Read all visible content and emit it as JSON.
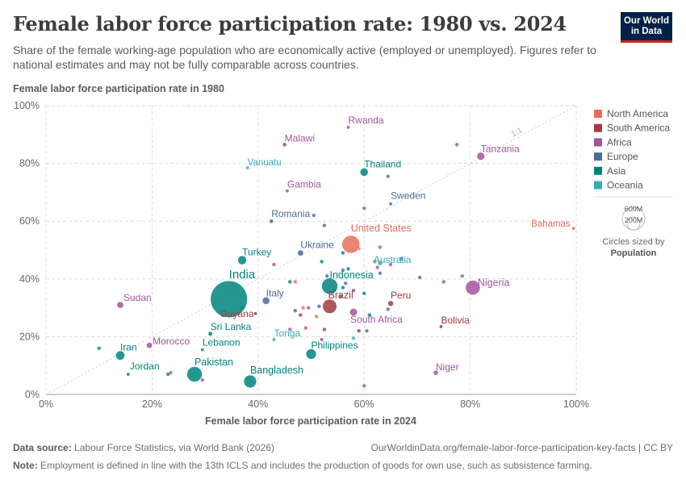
{
  "header": {
    "title": "Female labor force participation rate: 1980 vs. 2024",
    "subtitle": "Share of the female working-age population who are economically active (employed or unemployed). Figures refer to national estimates and may not be fully comparable across countries.",
    "logo_line1": "Our World",
    "logo_line2": "in Data"
  },
  "footer": {
    "source_label": "Data source:",
    "source_text": "Labour Force Statistics, via World Bank (2026)",
    "url": "OurWorldinData.org/female-labor-force-participation-key-facts | CC BY",
    "note_label": "Note:",
    "note_text": "Employment is defined in line with the 13th ICLS and includes the production of goods for own use, such as subsistence farming."
  },
  "colors": {
    "North America": "#e56e5a",
    "South America": "#a2393f",
    "Africa": "#a2559c",
    "Europe": "#4c6a9c",
    "Asia": "#00847e",
    "Oceania": "#38aaba"
  },
  "size_legend": {
    "big_label": "600M",
    "small_label": "200M",
    "caption1": "Circles sized by",
    "caption2": "Population"
  },
  "chart_data": {
    "type": "scatter",
    "title": "Female labor force participation rate: 1980 vs. 2024",
    "xlabel": "Female labor force participation rate in 2024",
    "ylabel": "Female labor force participation rate in 1980",
    "xlim": [
      0,
      100
    ],
    "ylim": [
      0,
      100
    ],
    "xticks": [
      "0%",
      "20%",
      "40%",
      "60%",
      "80%",
      "100%"
    ],
    "yticks": [
      "0%",
      "20%",
      "40%",
      "60%",
      "80%",
      "100%"
    ],
    "diagonal_label": "1:1",
    "grid": true,
    "legend_position": "right",
    "legend": [
      "North America",
      "South America",
      "Africa",
      "Europe",
      "Asia",
      "Oceania"
    ],
    "points": [
      {
        "label": "India",
        "region": "Asia",
        "x": 34.5,
        "y": 33,
        "pop": 1450
      },
      {
        "label": "United States",
        "region": "North America",
        "x": 57.5,
        "y": 52,
        "pop": 340
      },
      {
        "label": "Indonesia",
        "region": "Asia",
        "x": 53.5,
        "y": 37.5,
        "pop": 280
      },
      {
        "label": "Pakistan",
        "region": "Asia",
        "x": 28,
        "y": 7,
        "pop": 250
      },
      {
        "label": "Nigeria",
        "region": "Africa",
        "x": 80.5,
        "y": 37,
        "pop": 230
      },
      {
        "label": "Brazil",
        "region": "South America",
        "x": 53.5,
        "y": 30.5,
        "pop": 215
      },
      {
        "label": "Bangladesh",
        "region": "Asia",
        "x": 38.5,
        "y": 4.5,
        "pop": 175
      },
      {
        "label": "Ukraine",
        "region": "Europe",
        "x": 48,
        "y": 49,
        "pop": 40
      },
      {
        "label": "Thailand",
        "region": "Asia",
        "x": 60,
        "y": 77,
        "pop": 72
      },
      {
        "label": "Tanzania",
        "region": "Africa",
        "x": 82,
        "y": 82.5,
        "pop": 67
      },
      {
        "label": "Rwanda",
        "region": "Africa",
        "x": 57,
        "y": 92.5,
        "pop": 14
      },
      {
        "label": "Malawi",
        "region": "Africa",
        "x": 45,
        "y": 86.5,
        "pop": 21
      },
      {
        "label": "Vanuatu",
        "region": "Oceania",
        "x": 38,
        "y": 78.5,
        "pop": 0.3
      },
      {
        "label": "Gambia",
        "region": "Africa",
        "x": 45.5,
        "y": 70.5,
        "pop": 2.7
      },
      {
        "label": "Sweden",
        "region": "Europe",
        "x": 65,
        "y": 66,
        "pop": 10.5
      },
      {
        "label": "Romania",
        "region": "Europe",
        "x": 42.5,
        "y": 60,
        "pop": 19
      },
      {
        "label": "Bahamas",
        "region": "North America",
        "x": 99.5,
        "y": 57.5,
        "pop": 0.4
      },
      {
        "label": "Turkey",
        "region": "Asia",
        "x": 37,
        "y": 46.5,
        "pop": 85
      },
      {
        "label": "Australia",
        "region": "Oceania",
        "x": 63,
        "y": 45.5,
        "pop": 26.5
      },
      {
        "label": "Italy",
        "region": "Europe",
        "x": 41.5,
        "y": 32.5,
        "pop": 59
      },
      {
        "label": "Guyana",
        "region": "South America",
        "x": 39.5,
        "y": 28,
        "pop": 0.8
      },
      {
        "label": "Peru",
        "region": "South America",
        "x": 65,
        "y": 31.5,
        "pop": 34
      },
      {
        "label": "South Africa",
        "region": "Africa",
        "x": 58,
        "y": 28.5,
        "pop": 63
      },
      {
        "label": "Bolivia",
        "region": "South America",
        "x": 74.5,
        "y": 23.5,
        "pop": 12
      },
      {
        "label": "Sudan",
        "region": "Africa",
        "x": 14,
        "y": 31,
        "pop": 48
      },
      {
        "label": "Morocco",
        "region": "Africa",
        "x": 19.5,
        "y": 17,
        "pop": 37
      },
      {
        "label": "Iran",
        "region": "Asia",
        "x": 14,
        "y": 13.5,
        "pop": 90
      },
      {
        "label": "Jordan",
        "region": "Asia",
        "x": 15.5,
        "y": 7,
        "pop": 11
      },
      {
        "label": "Lebanon",
        "region": "Asia",
        "x": 29.5,
        "y": 15.5,
        "pop": 5.5
      },
      {
        "label": "Sri Lanka",
        "region": "Asia",
        "x": 31,
        "y": 21,
        "pop": 22
      },
      {
        "label": "Tonga",
        "region": "Oceania",
        "x": 43,
        "y": 19,
        "pop": 0.1
      },
      {
        "label": "Philippines",
        "region": "Asia",
        "x": 50,
        "y": 14,
        "pop": 115
      },
      {
        "label": "Niger",
        "region": "Africa",
        "x": 73.5,
        "y": 7.5,
        "pop": 27
      }
    ],
    "unlabeled_points": [
      {
        "region": "Asia",
        "x": 10,
        "y": 16
      },
      {
        "region": "Africa",
        "x": 23.5,
        "y": 7.5
      },
      {
        "region": "Asia",
        "x": 23,
        "y": 7
      },
      {
        "region": "Africa",
        "x": 29.5,
        "y": 5
      },
      {
        "region": "Oceania",
        "x": 37,
        "y": 30
      },
      {
        "region": "Asia",
        "x": 46,
        "y": 39
      },
      {
        "region": "North America",
        "x": 47,
        "y": 39
      },
      {
        "region": "Africa",
        "x": 43,
        "y": 45
      },
      {
        "region": "Europe",
        "x": 50.5,
        "y": 62
      },
      {
        "region": "Africa",
        "x": 46,
        "y": 22.5
      },
      {
        "region": "Europe",
        "x": 47,
        "y": 29
      },
      {
        "region": "South America",
        "x": 48,
        "y": 27.5
      },
      {
        "region": "North America",
        "x": 48.5,
        "y": 30
      },
      {
        "region": "Africa",
        "x": 49.5,
        "y": 30
      },
      {
        "region": "Africa",
        "x": 49,
        "y": 23
      },
      {
        "region": "North America",
        "x": 51,
        "y": 27
      },
      {
        "region": "South America",
        "x": 52.5,
        "y": 22.5
      },
      {
        "region": "Africa",
        "x": 52,
        "y": 19
      },
      {
        "region": "Europe",
        "x": 51.5,
        "y": 30.5
      },
      {
        "region": "Europe",
        "x": 52.5,
        "y": 58.5
      },
      {
        "region": "Asia",
        "x": 52,
        "y": 46
      },
      {
        "region": "Europe",
        "x": 53,
        "y": 41
      },
      {
        "region": "Europe",
        "x": 54.5,
        "y": 36
      },
      {
        "region": "Asia",
        "x": 55.5,
        "y": 34
      },
      {
        "region": "Europe",
        "x": 56,
        "y": 43
      },
      {
        "region": "Asia",
        "x": 56,
        "y": 49
      },
      {
        "region": "Europe",
        "x": 56.5,
        "y": 38.5
      },
      {
        "region": "Asia",
        "x": 57,
        "y": 43.5
      },
      {
        "region": "Asia",
        "x": 56,
        "y": 37
      },
      {
        "region": "Europe",
        "x": 58,
        "y": 36
      },
      {
        "region": "Oceania",
        "x": 58,
        "y": 19.5
      },
      {
        "region": "South America",
        "x": 59,
        "y": 22
      },
      {
        "region": "Europe",
        "x": 60.5,
        "y": 22
      },
      {
        "region": "Asia",
        "x": 60,
        "y": 35
      },
      {
        "region": "Asia",
        "x": 61,
        "y": 27.5
      },
      {
        "region": "North America",
        "x": 59,
        "y": 50.5
      },
      {
        "region": "North America",
        "x": 62,
        "y": 46
      },
      {
        "region": "Africa",
        "x": 62.5,
        "y": 44
      },
      {
        "region": "Europe",
        "x": 63,
        "y": 42
      },
      {
        "region": "Africa",
        "x": 63,
        "y": 51
      },
      {
        "region": "Africa",
        "x": 65,
        "y": 45
      },
      {
        "region": "Africa",
        "x": 64.5,
        "y": 75.5
      },
      {
        "region": "Europe",
        "x": 64.5,
        "y": 29.5
      },
      {
        "region": "Africa",
        "x": 60,
        "y": 64.5
      },
      {
        "region": "Africa",
        "x": 60,
        "y": 3
      },
      {
        "region": "Europe",
        "x": 70.5,
        "y": 40.5
      },
      {
        "region": "Africa",
        "x": 75,
        "y": 39
      },
      {
        "region": "Africa",
        "x": 78.5,
        "y": 41
      },
      {
        "region": "Africa",
        "x": 77.5,
        "y": 86.5
      },
      {
        "region": "Europe",
        "x": 67,
        "y": 47
      }
    ]
  }
}
